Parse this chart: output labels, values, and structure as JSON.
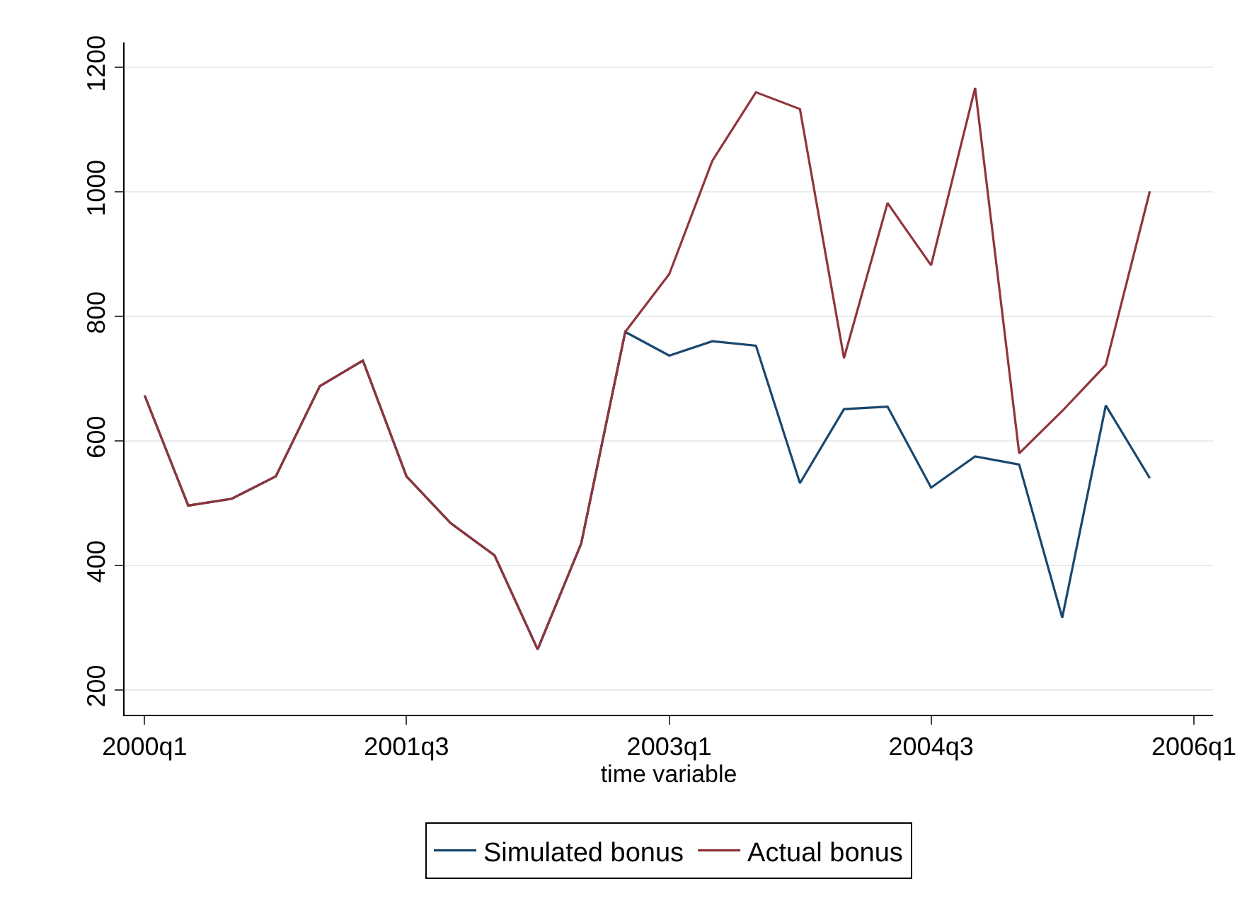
{
  "chart_data": {
    "type": "line",
    "xlabel": "time variable",
    "x": [
      "2000-01",
      "2000-04",
      "2000-07",
      "2000-10",
      "2001-01",
      "2001-04",
      "2001-07",
      "2001-10",
      "2002-01",
      "2002-04",
      "2002-07",
      "2002-10",
      "2003-01",
      "2003-04",
      "2003-07",
      "2003-10",
      "2004-01",
      "2004-04",
      "2004-07",
      "2004-10",
      "2005-01",
      "2005-04",
      "2005-07",
      "2005-10"
    ],
    "series": [
      {
        "name": "Simulated bonus",
        "color": "#1a476f",
        "values": [
          673,
          496,
          507,
          543,
          688,
          729,
          543,
          468,
          416,
          265,
          435,
          775,
          737,
          760,
          753,
          532,
          651,
          655,
          525,
          575,
          562,
          316,
          657,
          540
        ]
      },
      {
        "name": "Actual bonus",
        "color": "#90353b",
        "values": [
          673,
          496,
          507,
          543,
          688,
          729,
          543,
          468,
          416,
          265,
          435,
          775,
          868,
          1050,
          1160,
          1133,
          733,
          982,
          882,
          1167,
          580,
          648,
          722,
          1001
        ]
      }
    ],
    "xlim": [
      "1999-11-20",
      "2006-02-10"
    ],
    "xticks": [
      {
        "value": "2000-01",
        "label": "2000q1"
      },
      {
        "value": "2001-07",
        "label": "2001q3"
      },
      {
        "value": "2003-01",
        "label": "2003q1"
      },
      {
        "value": "2004-07",
        "label": "2004q3"
      },
      {
        "value": "2006-01",
        "label": "2006q1"
      }
    ],
    "ylim": [
      160,
      1240
    ],
    "yticks": [
      200,
      400,
      600,
      800,
      1000,
      1200
    ],
    "grid": "y",
    "legend": "bottom",
    "marker": "none",
    "line_style": "solid"
  }
}
